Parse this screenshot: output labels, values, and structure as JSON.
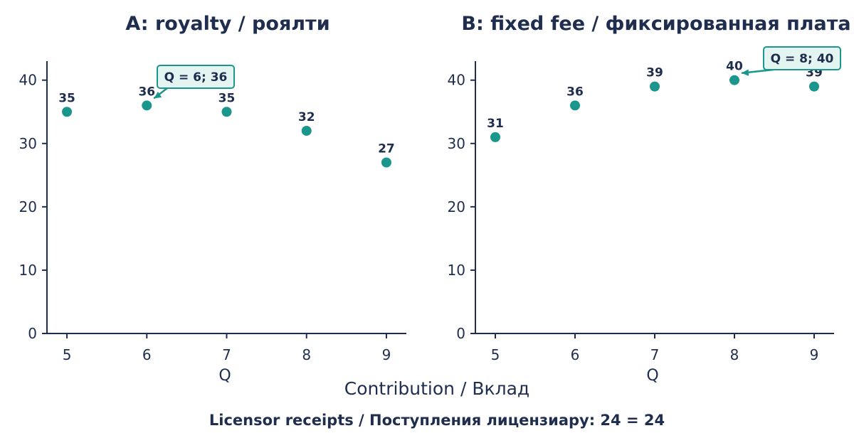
{
  "colors": {
    "marker": "#1a968c",
    "axis": "#1f2d4e",
    "text": "#1f2d4e",
    "callout_fill": "#e3f4f1",
    "callout_stroke": "#1a968c"
  },
  "chart_data": [
    {
      "type": "scatter",
      "title": "A: royalty / роялти",
      "xlabel": "Q",
      "ylabel": "",
      "x": [
        5,
        6,
        7,
        8,
        9
      ],
      "series": [
        {
          "values": [
            35,
            36,
            35,
            32,
            27
          ]
        }
      ],
      "data_labels": [
        "35",
        "36",
        "35",
        "32",
        "27"
      ],
      "xlim": [
        4.75,
        9.25
      ],
      "ylim": [
        0,
        43
      ],
      "yticks": [
        0,
        10,
        20,
        30,
        40
      ],
      "xticks": [
        5,
        6,
        7,
        8,
        9
      ],
      "grid": false,
      "annotation": {
        "text": "Q = 6; 36",
        "x": 6,
        "y": 36
      }
    },
    {
      "type": "scatter",
      "title": "B: fixed fee / фиксированная плата",
      "xlabel": "Q",
      "ylabel": "",
      "x": [
        5,
        6,
        7,
        8,
        9
      ],
      "series": [
        {
          "values": [
            31,
            36,
            39,
            40,
            39
          ]
        }
      ],
      "data_labels": [
        "31",
        "36",
        "39",
        "40",
        "39"
      ],
      "xlim": [
        4.75,
        9.25
      ],
      "ylim": [
        0,
        43
      ],
      "yticks": [
        0,
        10,
        20,
        30,
        40
      ],
      "xticks": [
        5,
        6,
        7,
        8,
        9
      ],
      "grid": false,
      "annotation": {
        "text": "Q = 8; 40",
        "x": 8,
        "y": 40
      }
    }
  ],
  "shared_xlabel": "Contribution / Вклад",
  "footer": "Licensor receipts / Поступления лицензиару: 24 = 24"
}
